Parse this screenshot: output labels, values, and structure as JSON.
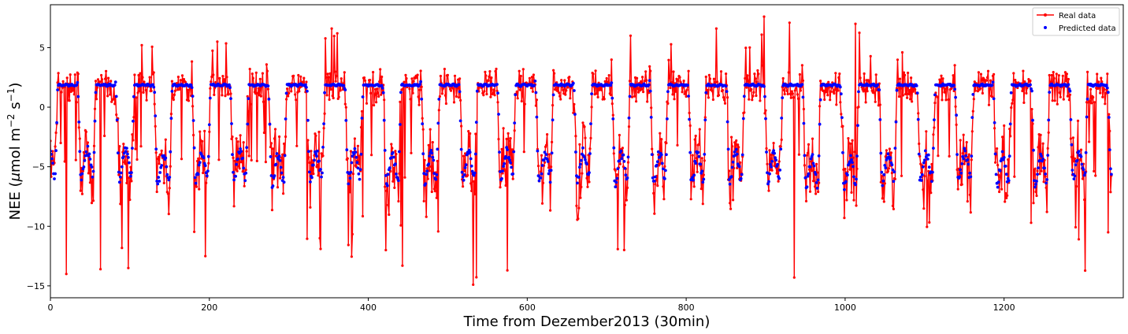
{
  "chart_data": {
    "type": "line",
    "xlabel": "Time from Dezember2013 (30min)",
    "ylabel_main": "NEE (",
    "ylabel_mu": "μ",
    "ylabel_mol": "mol m",
    "ylabel_exp1": "−2",
    "ylabel_s": " s",
    "ylabel_exp2": "−1",
    "ylabel_close": ")",
    "xlim": [
      0,
      1350
    ],
    "ylim": [
      -16,
      8.6
    ],
    "xticks": [
      0,
      200,
      400,
      600,
      800,
      1000,
      1200
    ],
    "yticks": [
      -15,
      -10,
      -5,
      0,
      5
    ],
    "grid": false,
    "legend_position": "top-right",
    "series": [
      {
        "name": "Real data",
        "style": "line-marker",
        "color": "#ff0000",
        "day_minimums": [
          -14.0,
          -13.6,
          -13.5,
          -12.5,
          -8.8,
          -10.3,
          -11.9,
          -12.6,
          -13.3,
          -12.8,
          -14.9,
          -13.7,
          -10.7,
          -9.9,
          -13.3,
          -9.3,
          -11.2,
          -12.0,
          -14.3,
          -8.5,
          -8.5,
          -8.0,
          -10.1,
          -8.9,
          -9.3,
          -10.1
        ],
        "day_maximums": [
          2.3,
          3.3,
          5.2,
          3.5,
          5.6,
          5.3,
          4.5,
          6.6,
          3.2,
          4.2,
          4.6,
          4.3,
          5.6,
          3.2,
          3.0,
          5.9,
          5.6,
          3.6,
          6.6,
          7.6,
          4.3,
          7.0,
          4.6,
          4.3,
          3.3,
          2.5
        ],
        "notable_points": [
          {
            "x": 20,
            "y": -14.0
          },
          {
            "x": 63,
            "y": -13.6
          },
          {
            "x": 98,
            "y": -13.5
          },
          {
            "x": 115,
            "y": 5.2
          },
          {
            "x": 195,
            "y": -12.5
          },
          {
            "x": 210,
            "y": 5.5
          },
          {
            "x": 340,
            "y": -11.9
          },
          {
            "x": 354,
            "y": 6.6
          },
          {
            "x": 443,
            "y": -13.3
          },
          {
            "x": 532,
            "y": -14.9
          },
          {
            "x": 575,
            "y": -13.7
          },
          {
            "x": 730,
            "y": 6.0
          },
          {
            "x": 838,
            "y": 6.6
          },
          {
            "x": 898,
            "y": 7.6
          },
          {
            "x": 936,
            "y": -14.3
          },
          {
            "x": 1013,
            "y": 7.0
          }
        ]
      },
      {
        "name": "Predicted data",
        "style": "markers",
        "color": "#0000ff",
        "day_level": 1.85,
        "night_minimums": [
          -6.0,
          -6.0,
          -6.5,
          -6.3,
          -6.2,
          -6.6,
          -6.2,
          -6.2,
          -6.6,
          -6.4,
          -6.3,
          -6.1,
          -6.3,
          -6.1,
          -6.4,
          -6.3,
          -6.4,
          -6.4,
          -6.2,
          -6.8,
          -7.0,
          -6.3,
          -6.3,
          -6.2,
          -6.6,
          -6.6
        ]
      }
    ]
  }
}
